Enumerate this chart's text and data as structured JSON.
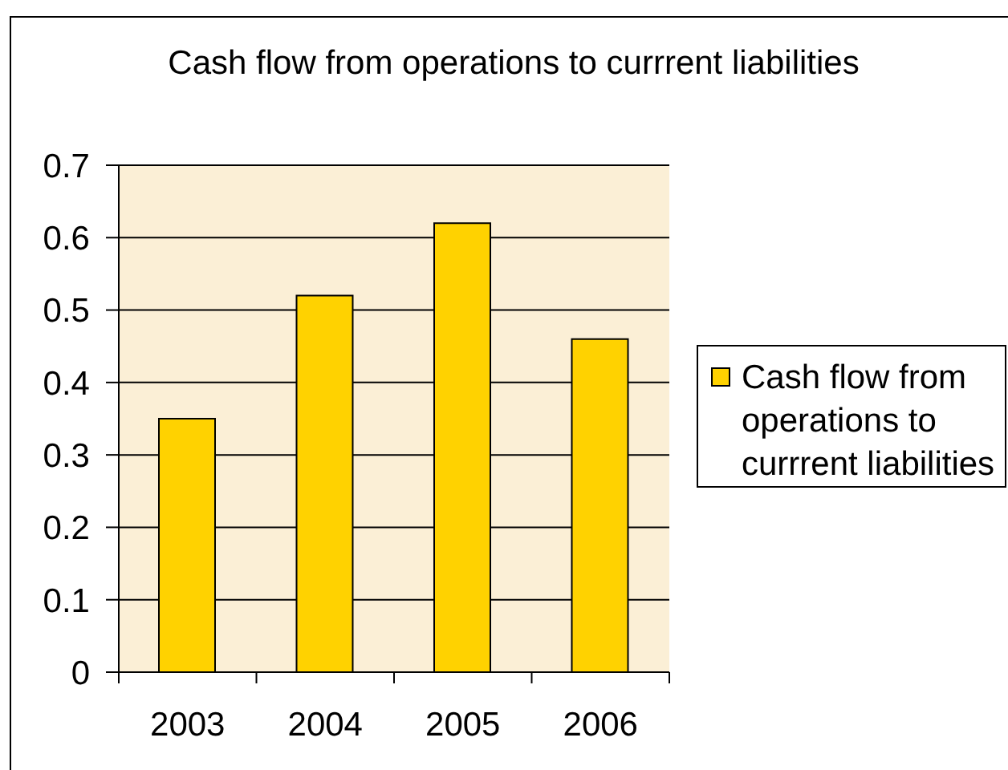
{
  "chart_data": {
    "type": "bar",
    "title": "Cash flow from operations to currrent liabilities",
    "categories": [
      "2003",
      "2004",
      "2005",
      "2006"
    ],
    "series": [
      {
        "name": "Cash flow from operations to currrent liabilities",
        "color": "#ffd200",
        "values": [
          0.35,
          0.52,
          0.62,
          0.46
        ]
      }
    ],
    "ylim": [
      0,
      0.7
    ],
    "yticks": [
      0,
      0.1,
      0.2,
      0.3,
      0.4,
      0.5,
      0.6,
      0.7
    ],
    "grid": "y",
    "legend": "right"
  }
}
